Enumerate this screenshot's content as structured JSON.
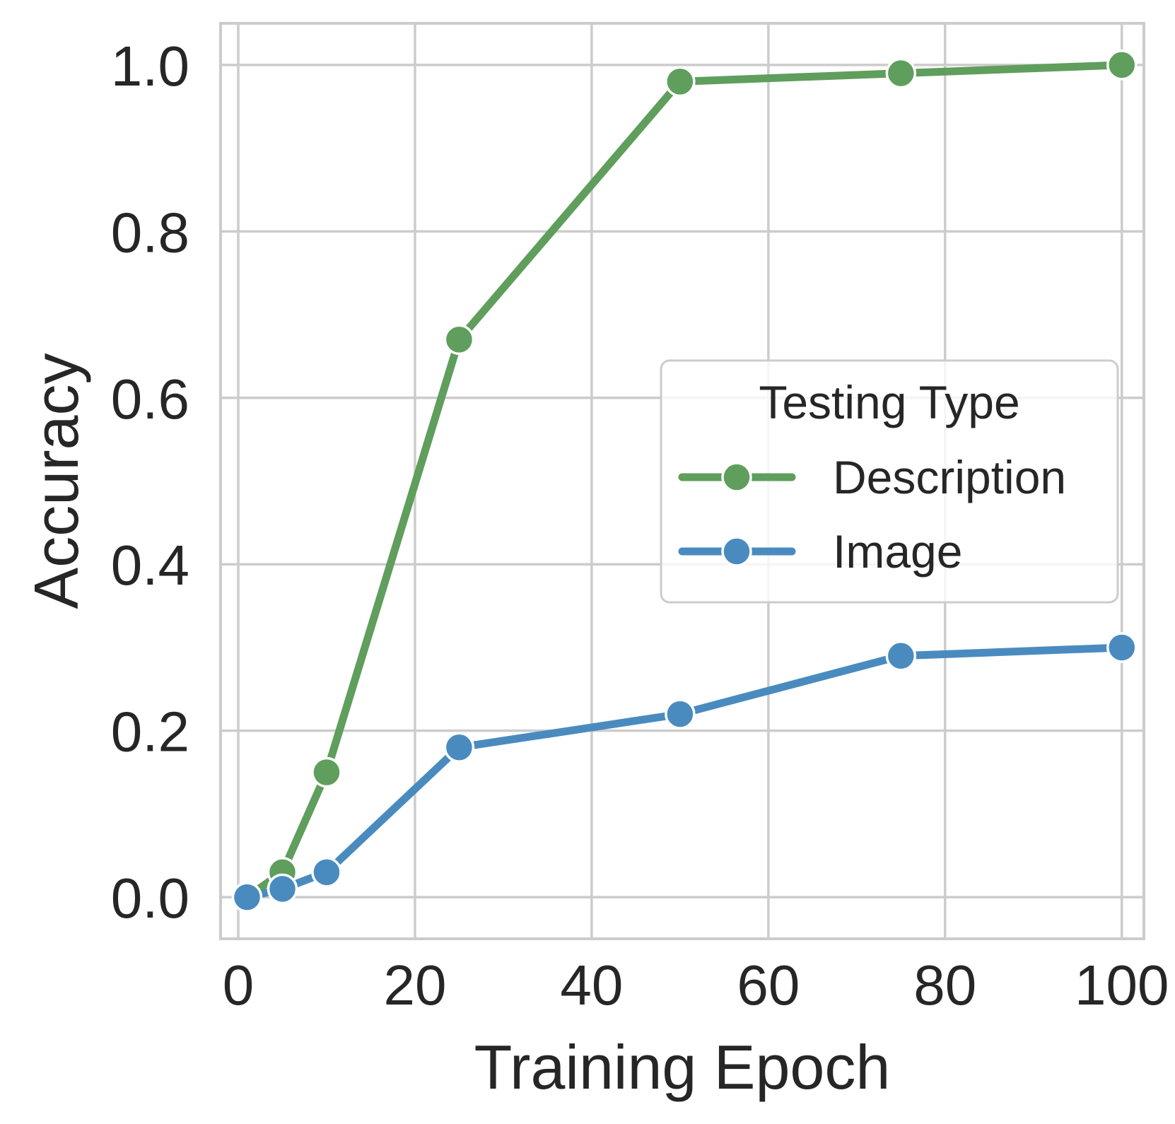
{
  "chart_data": {
    "type": "line",
    "xlabel": "Training Epoch",
    "ylabel": "Accuracy",
    "xlim": [
      -2,
      102.5
    ],
    "ylim": [
      -0.05,
      1.05
    ],
    "xticks": [
      0,
      20,
      40,
      60,
      80,
      100
    ],
    "yticks": [
      0.0,
      0.2,
      0.4,
      0.6,
      0.8,
      1.0
    ],
    "xtick_labels": [
      "0",
      "20",
      "40",
      "60",
      "80",
      "100"
    ],
    "ytick_labels": [
      "0.0",
      "0.2",
      "0.4",
      "0.6",
      "0.8",
      "1.0"
    ],
    "grid": true,
    "legend": {
      "title": "Testing Type",
      "placement": "center-right"
    },
    "series": [
      {
        "name": "Description",
        "color": "#5f9e5c",
        "marker": "circle",
        "x": [
          1,
          5,
          10,
          25,
          50,
          75,
          100
        ],
        "y": [
          0.0,
          0.03,
          0.15,
          0.67,
          0.98,
          0.99,
          1.0
        ]
      },
      {
        "name": "Image",
        "color": "#4a8bbf",
        "marker": "circle",
        "x": [
          1,
          5,
          10,
          25,
          50,
          75,
          100
        ],
        "y": [
          0.0,
          0.01,
          0.03,
          0.18,
          0.22,
          0.29,
          0.3
        ]
      }
    ]
  }
}
